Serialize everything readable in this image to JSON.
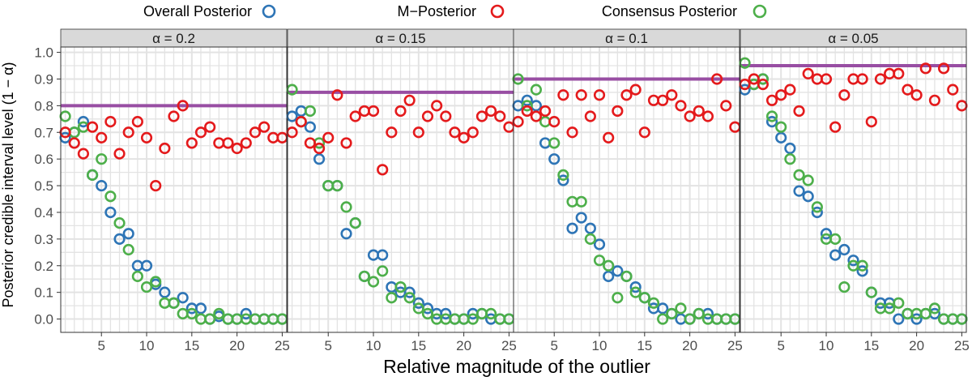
{
  "chart_data": {
    "type": "scatter",
    "xlabel": "Relative magnitude of the outlier",
    "ylabel": "Posterior credible interval level (1 − α)",
    "xlim": [
      0.5,
      25.5
    ],
    "ylim": [
      -0.05,
      1.02
    ],
    "x_ticks": [
      5,
      10,
      15,
      20,
      25
    ],
    "y_ticks": [
      0.0,
      0.1,
      0.2,
      0.3,
      0.4,
      0.5,
      0.6,
      0.7,
      0.8,
      0.9,
      1.0
    ],
    "y_tick_labels": [
      "0.0",
      "0.1",
      "0.2",
      "0.3",
      "0.4",
      "0.5",
      "0.6",
      "0.7",
      "0.8",
      "0.9",
      "1.0"
    ],
    "grid": true,
    "legend_position": "top",
    "x": [
      1,
      2,
      3,
      4,
      5,
      6,
      7,
      8,
      9,
      10,
      11,
      12,
      13,
      14,
      15,
      16,
      17,
      18,
      19,
      20,
      21,
      22,
      23,
      24,
      25
    ],
    "series_styles": [
      {
        "name": "Overall Posterior",
        "color": "#2e75b6"
      },
      {
        "name": "M−Posterior",
        "color": "#e41a1c"
      },
      {
        "name": "Consensus Posterior",
        "color": "#4daf4a"
      }
    ],
    "reference_line_color": "#984ea3",
    "panels": [
      {
        "label": "α = 0.2",
        "reference": 0.8,
        "series": [
          {
            "name": "Overall Posterior",
            "values": [
              0.68,
              0.7,
              0.74,
              0.54,
              0.5,
              0.4,
              0.3,
              0.32,
              0.2,
              0.2,
              0.13,
              0.1,
              0.06,
              0.08,
              0.04,
              0.04,
              0.0,
              0.01,
              0.0,
              0.0,
              0.02,
              0.0,
              0.0,
              0.0,
              0.0
            ]
          },
          {
            "name": "M−Posterior",
            "values": [
              0.7,
              0.66,
              0.62,
              0.72,
              0.68,
              0.74,
              0.62,
              0.7,
              0.74,
              0.68,
              0.5,
              0.64,
              0.76,
              0.8,
              0.66,
              0.7,
              0.72,
              0.66,
              0.66,
              0.64,
              0.66,
              0.7,
              0.72,
              0.68,
              0.68
            ]
          },
          {
            "name": "Consensus Posterior",
            "values": [
              0.76,
              0.7,
              0.72,
              0.54,
              0.6,
              0.46,
              0.36,
              0.26,
              0.16,
              0.12,
              0.14,
              0.06,
              0.06,
              0.02,
              0.02,
              0.0,
              0.0,
              0.02,
              0.0,
              0.0,
              0.0,
              0.0,
              0.0,
              0.0,
              0.0
            ]
          }
        ]
      },
      {
        "label": "α = 0.15",
        "reference": 0.85,
        "series": [
          {
            "name": "Overall Posterior",
            "values": [
              0.76,
              0.78,
              0.72,
              0.6,
              0.5,
              0.5,
              0.32,
              0.36,
              0.16,
              0.24,
              0.24,
              0.12,
              0.1,
              0.1,
              0.06,
              0.04,
              0.02,
              0.02,
              0.0,
              0.0,
              0.02,
              0.02,
              0.0,
              0.0,
              0.0
            ]
          },
          {
            "name": "M−Posterior",
            "values": [
              0.7,
              0.74,
              0.66,
              0.64,
              0.68,
              0.84,
              0.66,
              0.76,
              0.78,
              0.78,
              0.56,
              0.7,
              0.78,
              0.82,
              0.7,
              0.76,
              0.8,
              0.76,
              0.7,
              0.68,
              0.7,
              0.76,
              0.78,
              0.76,
              0.72
            ]
          },
          {
            "name": "Consensus Posterior",
            "values": [
              0.86,
              0.74,
              0.78,
              0.66,
              0.5,
              0.5,
              0.42,
              0.36,
              0.16,
              0.14,
              0.18,
              0.08,
              0.12,
              0.08,
              0.04,
              0.02,
              0.0,
              0.0,
              0.0,
              0.0,
              0.0,
              0.02,
              0.02,
              0.0,
              0.0
            ]
          }
        ]
      },
      {
        "label": "α = 0.1",
        "reference": 0.9,
        "series": [
          {
            "name": "Overall Posterior",
            "values": [
              0.8,
              0.82,
              0.8,
              0.66,
              0.6,
              0.52,
              0.34,
              0.38,
              0.34,
              0.28,
              0.16,
              0.18,
              0.16,
              0.12,
              0.08,
              0.04,
              0.04,
              0.02,
              0.0,
              0.0,
              0.02,
              0.02,
              0.0,
              0.0,
              0.0
            ]
          },
          {
            "name": "M−Posterior",
            "values": [
              0.74,
              0.78,
              0.76,
              0.78,
              0.74,
              0.84,
              0.7,
              0.84,
              0.76,
              0.84,
              0.68,
              0.78,
              0.84,
              0.86,
              0.7,
              0.82,
              0.82,
              0.84,
              0.8,
              0.76,
              0.78,
              0.76,
              0.9,
              0.8,
              0.72
            ]
          },
          {
            "name": "Consensus Posterior",
            "values": [
              0.9,
              0.8,
              0.86,
              0.74,
              0.66,
              0.54,
              0.44,
              0.44,
              0.3,
              0.22,
              0.2,
              0.08,
              0.16,
              0.1,
              0.08,
              0.06,
              0.0,
              0.02,
              0.04,
              0.0,
              0.02,
              0.0,
              0.0,
              0.0,
              0.0
            ]
          }
        ]
      },
      {
        "label": "α = 0.05",
        "reference": 0.95,
        "series": [
          {
            "name": "Overall Posterior",
            "values": [
              0.86,
              0.88,
              0.9,
              0.74,
              0.68,
              0.64,
              0.48,
              0.46,
              0.4,
              0.32,
              0.24,
              0.26,
              0.22,
              0.18,
              0.1,
              0.06,
              0.06,
              0.0,
              0.02,
              0.0,
              0.02,
              0.02,
              0.0,
              0.0,
              0.0
            ]
          },
          {
            "name": "M−Posterior",
            "values": [
              0.88,
              0.9,
              0.88,
              0.82,
              0.84,
              0.86,
              0.78,
              0.92,
              0.9,
              0.9,
              0.72,
              0.84,
              0.9,
              0.9,
              0.74,
              0.9,
              0.92,
              0.92,
              0.86,
              0.84,
              0.94,
              0.82,
              0.94,
              0.86,
              0.8
            ]
          },
          {
            "name": "Consensus Posterior",
            "values": [
              0.96,
              0.88,
              0.9,
              0.76,
              0.72,
              0.6,
              0.54,
              0.52,
              0.42,
              0.3,
              0.3,
              0.12,
              0.2,
              0.2,
              0.1,
              0.04,
              0.04,
              0.06,
              0.02,
              0.02,
              0.02,
              0.04,
              0.0,
              0.0,
              0.0
            ]
          }
        ]
      }
    ]
  }
}
